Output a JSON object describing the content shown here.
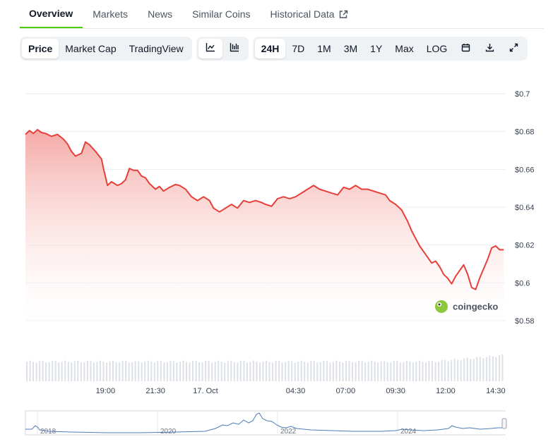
{
  "tabs": [
    {
      "label": "Overview",
      "active": true
    },
    {
      "label": "Markets"
    },
    {
      "label": "News"
    },
    {
      "label": "Similar Coins"
    },
    {
      "label": "Historical Data",
      "icon": "external-link-icon"
    }
  ],
  "toolbar": {
    "chart_modes": [
      "Price",
      "Market Cap",
      "TradingView"
    ],
    "active_mode": "Price",
    "chart_styles": [
      "line-chart-icon",
      "candlestick-icon"
    ],
    "ranges": [
      "24H",
      "7D",
      "1M",
      "3M",
      "1Y",
      "Max",
      "LOG"
    ],
    "active_range": "24H",
    "tools": [
      "calendar-icon",
      "download-icon",
      "expand-icon"
    ]
  },
  "watermark": {
    "text": "coingecko",
    "icon": "gecko-logo-icon"
  },
  "colors": {
    "line": "#e5403a",
    "fill_top": "#f4a9a5",
    "fill_bottom": "#ffffff",
    "accent_tab": "#4bcc00",
    "volume": "#dde1e6",
    "navigator_line": "#4f7bb8"
  },
  "chart_data": {
    "type": "area",
    "y_ticks": [
      "$0.7",
      "$0.68",
      "$0.66",
      "$0.64",
      "$0.62",
      "$0.6",
      "$0.58"
    ],
    "y_tick_values": [
      0.7,
      0.68,
      0.66,
      0.64,
      0.62,
      0.6,
      0.58
    ],
    "ylim": [
      0.58,
      0.71
    ],
    "x_ticks": [
      "19:00",
      "21:30",
      "17. Oct",
      "04:30",
      "07:00",
      "09:30",
      "12:00",
      "14:30"
    ],
    "x_tick_hours": [
      19.0,
      21.5,
      24.0,
      28.5,
      31.0,
      33.5,
      36.0,
      38.5
    ],
    "xlim_hours": [
      15.0,
      39.0
    ],
    "series": [
      {
        "hours": [
          15.0,
          15.2,
          15.4,
          15.6,
          15.8,
          16.0,
          16.3,
          16.6,
          16.9,
          17.1,
          17.3,
          17.5,
          17.8,
          18.0,
          18.2,
          18.5,
          18.8,
          18.9,
          19.1,
          19.3,
          19.6,
          19.8,
          20.0,
          20.1,
          20.2,
          20.4,
          20.6,
          20.8,
          21.0,
          21.2,
          21.5,
          21.7,
          21.9,
          22.2,
          22.5,
          22.7,
          23.0,
          23.3,
          23.6,
          23.9,
          24.2,
          24.4,
          24.7,
          25.0,
          25.3,
          25.6,
          25.9,
          26.2,
          26.5,
          26.8,
          27.0,
          27.3,
          27.6,
          27.9,
          28.2,
          28.5,
          28.8,
          29.1,
          29.4,
          29.7,
          30.0,
          30.3,
          30.6,
          30.9,
          31.2,
          31.5,
          31.8,
          32.1,
          32.4,
          32.7,
          33.0,
          33.2,
          33.5,
          33.8,
          34.1,
          34.3,
          34.5,
          34.7,
          34.9,
          35.1,
          35.3,
          35.5,
          35.7,
          35.9,
          36.1,
          36.3,
          36.5,
          36.7,
          36.9,
          37.1,
          37.3,
          37.5,
          37.7,
          37.9,
          38.1,
          38.3,
          38.5,
          38.7,
          38.9
        ],
        "values": [
          0.6785,
          0.6805,
          0.679,
          0.681,
          0.6795,
          0.679,
          0.6775,
          0.6785,
          0.676,
          0.6735,
          0.6695,
          0.667,
          0.6685,
          0.6745,
          0.673,
          0.6695,
          0.6655,
          0.6605,
          0.6515,
          0.6535,
          0.6515,
          0.6525,
          0.6545,
          0.6575,
          0.6605,
          0.6595,
          0.6595,
          0.6565,
          0.6555,
          0.6525,
          0.6495,
          0.651,
          0.6485,
          0.6505,
          0.652,
          0.6515,
          0.6495,
          0.6455,
          0.6435,
          0.6455,
          0.6435,
          0.6395,
          0.6375,
          0.6395,
          0.6415,
          0.6395,
          0.6435,
          0.6425,
          0.6435,
          0.6425,
          0.6415,
          0.6405,
          0.6445,
          0.6455,
          0.6445,
          0.6455,
          0.6475,
          0.6495,
          0.6515,
          0.6495,
          0.6485,
          0.6475,
          0.6465,
          0.6505,
          0.6495,
          0.6515,
          0.6495,
          0.6495,
          0.6485,
          0.6475,
          0.6465,
          0.6435,
          0.6415,
          0.6385,
          0.6325,
          0.6275,
          0.6235,
          0.6195,
          0.6165,
          0.6135,
          0.6105,
          0.6115,
          0.6085,
          0.6045,
          0.6025,
          0.5995,
          0.6035,
          0.6065,
          0.6095,
          0.6045,
          0.5975,
          0.5965,
          0.6025,
          0.6075,
          0.6125,
          0.6185,
          0.6195,
          0.6175,
          0.6175
        ]
      }
    ],
    "navigator": {
      "x_ticks": [
        "2018",
        "2020",
        "2022",
        "2024"
      ]
    }
  }
}
